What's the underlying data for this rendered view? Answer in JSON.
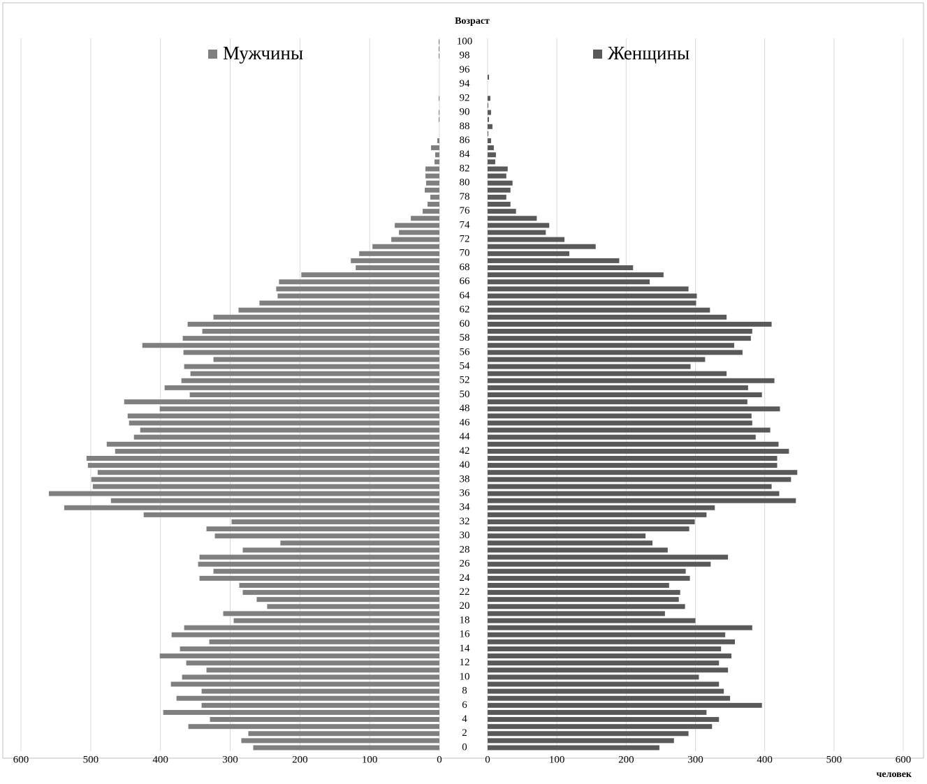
{
  "chart_data": {
    "type": "pyramid",
    "y_label": "Возраст",
    "x_label": "человек",
    "categories": [
      0,
      null,
      2,
      null,
      4,
      null,
      6,
      null,
      8,
      null,
      10,
      null,
      12,
      null,
      14,
      null,
      16,
      null,
      18,
      null,
      20,
      null,
      22,
      null,
      24,
      null,
      26,
      null,
      28,
      null,
      30,
      null,
      32,
      null,
      34,
      null,
      36,
      null,
      38,
      null,
      40,
      null,
      42,
      null,
      44,
      null,
      46,
      null,
      48,
      null,
      50,
      null,
      52,
      null,
      54,
      null,
      56,
      null,
      58,
      null,
      60,
      null,
      62,
      null,
      64,
      null,
      66,
      null,
      68,
      null,
      70,
      null,
      72,
      null,
      74,
      null,
      76,
      null,
      78,
      null,
      80,
      null,
      82,
      null,
      84,
      null,
      86,
      null,
      88,
      null,
      90,
      null,
      92,
      null,
      94,
      null,
      96,
      null,
      98,
      null,
      100
    ],
    "series": [
      {
        "name": "Мужчины",
        "color": "#7f7f7f",
        "values": [
          267,
          284,
          274,
          360,
          329,
          396,
          341,
          377,
          341,
          385,
          369,
          334,
          363,
          401,
          372,
          330,
          384,
          366,
          295,
          310,
          247,
          262,
          282,
          287,
          344,
          324,
          346,
          344,
          282,
          228,
          322,
          334,
          298,
          424,
          538,
          471,
          560,
          497,
          499,
          490,
          504,
          506,
          465,
          477,
          438,
          429,
          445,
          447,
          401,
          452,
          358,
          394,
          370,
          357,
          366,
          324,
          367,
          426,
          368,
          340,
          361,
          324,
          288,
          258,
          232,
          234,
          230,
          198,
          120,
          127,
          115,
          96,
          69,
          58,
          64,
          41,
          24,
          17,
          13,
          21,
          19,
          20,
          20,
          7,
          6,
          12,
          3,
          0,
          0,
          1,
          1,
          0,
          1,
          0,
          0,
          0,
          0,
          0,
          1,
          1,
          1
        ]
      },
      {
        "name": "Женщины",
        "color": "#595959",
        "values": [
          248,
          269,
          290,
          324,
          334,
          316,
          396,
          350,
          341,
          334,
          305,
          347,
          334,
          352,
          337,
          357,
          343,
          382,
          300,
          256,
          285,
          276,
          278,
          262,
          292,
          286,
          322,
          347,
          260,
          238,
          228,
          291,
          299,
          316,
          328,
          445,
          421,
          410,
          438,
          447,
          418,
          418,
          435,
          420,
          387,
          408,
          382,
          381,
          422,
          375,
          396,
          376,
          414,
          345,
          293,
          314,
          368,
          356,
          380,
          382,
          410,
          345,
          321,
          301,
          302,
          290,
          234,
          254,
          210,
          190,
          118,
          156,
          111,
          84,
          89,
          71,
          41,
          33,
          27,
          33,
          36,
          27,
          29,
          11,
          12,
          9,
          5,
          1,
          7,
          2,
          5,
          1,
          4,
          0,
          0,
          2,
          0,
          0,
          0,
          0,
          0
        ]
      }
    ],
    "xlim": [
      0,
      600
    ],
    "xticks": [
      0,
      100,
      200,
      300,
      400,
      500,
      600
    ],
    "grid": true
  }
}
